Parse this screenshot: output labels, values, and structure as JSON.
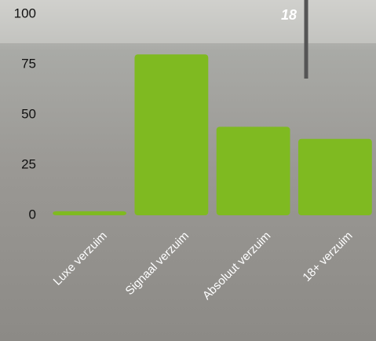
{
  "chart_data": {
    "type": "bar",
    "annotation": "18",
    "categories": [
      "Luxe verzuim",
      "Signaal verzuim",
      "Absoluut verzuim",
      "18+ verzuim"
    ],
    "values": [
      2,
      80,
      44,
      38
    ],
    "color": "#7fba21",
    "ylim": [
      0,
      100
    ],
    "yticks": [
      0,
      25,
      50,
      75,
      100
    ]
  }
}
